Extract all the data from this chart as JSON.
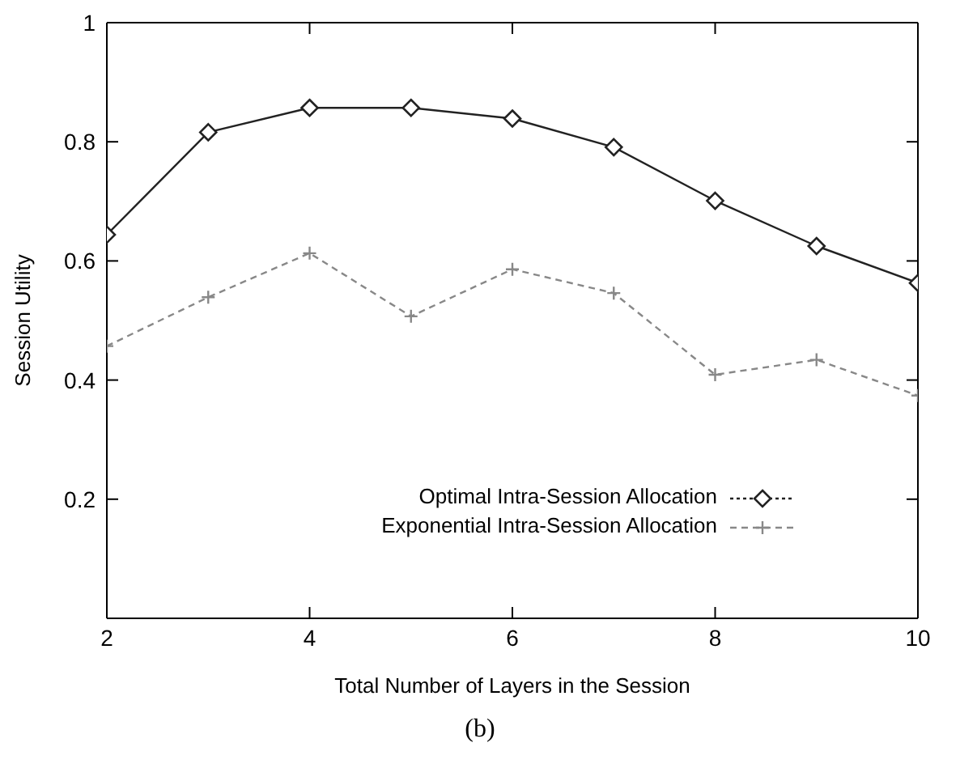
{
  "chart_data": {
    "type": "line",
    "xlabel": "Total Number of Layers in the Session",
    "ylabel": "Session Utility",
    "annotations": [
      "(b)"
    ],
    "x": [
      2,
      3,
      4,
      5,
      6,
      7,
      8,
      9,
      10
    ],
    "xlim": [
      2,
      10
    ],
    "xticks": [
      2,
      4,
      6,
      8,
      10
    ],
    "ylim": [
      0,
      1
    ],
    "yticks": [
      {
        "value": 0,
        "label": null
      },
      0.2,
      0.4,
      0.6,
      0.8,
      1
    ],
    "grid": false,
    "legend": "bottom right",
    "series": [
      {
        "name": "Optimal Intra-Session Allocation",
        "color": "#222222",
        "marker": "diamond",
        "line_style": "solid",
        "values": [
          0.644,
          0.816,
          0.857,
          0.857,
          0.839,
          0.791,
          0.701,
          0.625,
          0.563
        ]
      },
      {
        "name": "Exponential Intra-Session Allocation",
        "color": "#888888",
        "marker": "cross",
        "line_style": "dashed",
        "values": [
          0.457,
          0.539,
          0.613,
          0.507,
          0.586,
          0.546,
          0.409,
          0.434,
          0.374
        ]
      }
    ]
  }
}
